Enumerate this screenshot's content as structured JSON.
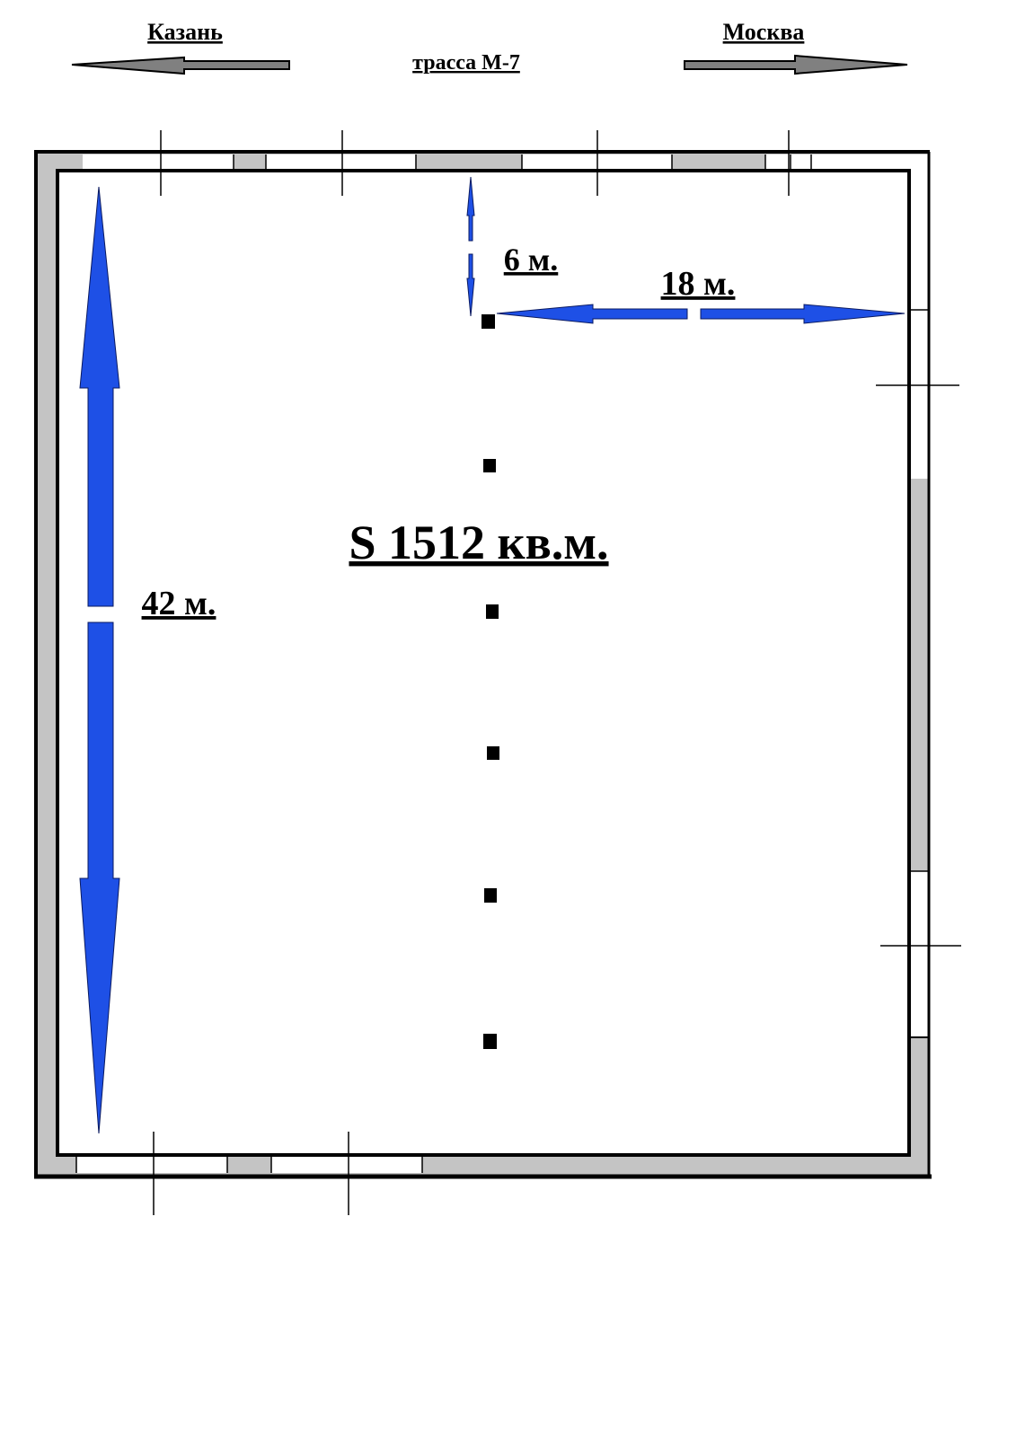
{
  "road": {
    "name": "трасса М-7",
    "left_direction": "Казань",
    "right_direction": "Москва"
  },
  "plan": {
    "area_label": "S 1512 кв.м.",
    "length_label": "42 м.",
    "column_spacing_label": "6 м.",
    "half_width_label": "18 м."
  },
  "colors": {
    "dimension_arrow": "#1e50e6",
    "road_arrow": "#808080",
    "wall_fill": "#c4c4c4",
    "outline": "#000000"
  }
}
